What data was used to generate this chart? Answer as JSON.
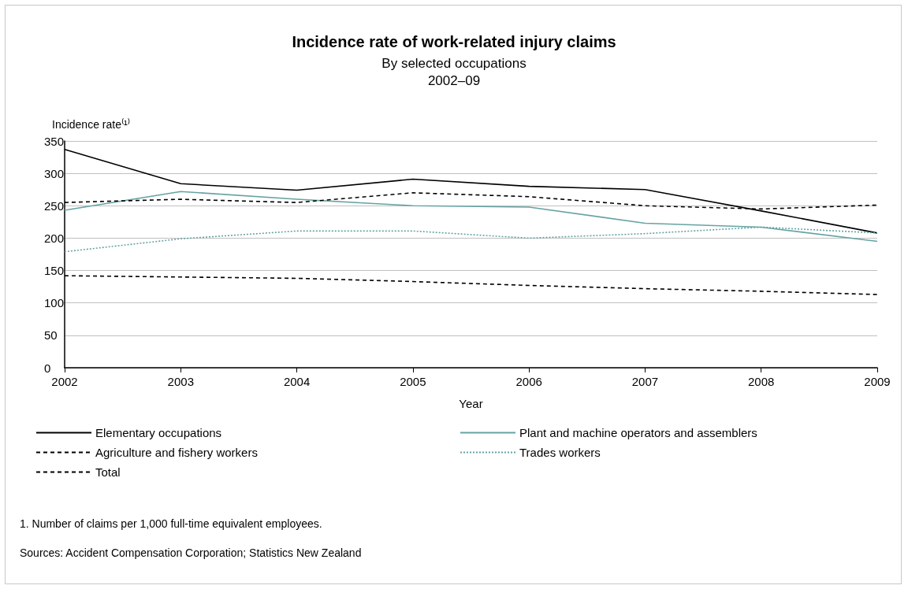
{
  "chart_data": {
    "type": "line",
    "title": "Incidence rate of work-related injury claims",
    "subtitle": "By selected occupations\n2002–09",
    "xlabel": "Year",
    "ylabel": "Incidence rate⁽¹⁾",
    "categories": [
      "2002",
      "2003",
      "2004",
      "2005",
      "2006",
      "2007",
      "2008",
      "2009"
    ],
    "series": [
      {
        "name": "Elementary occupations",
        "color": "#000000",
        "line_style": "solid",
        "values": [
          337,
          284,
          274,
          291,
          280,
          275,
          242,
          208
        ]
      },
      {
        "name": "Plant and machine operators and assemblers",
        "color": "#66a3a3",
        "line_style": "solid",
        "values": [
          243,
          272,
          260,
          250,
          248,
          223,
          217,
          195
        ]
      },
      {
        "name": "Agriculture and fishery workers",
        "color": "#000000",
        "line_style": "dashed",
        "values": [
          255,
          260,
          255,
          270,
          264,
          250,
          245,
          251
        ]
      },
      {
        "name": "Trades workers",
        "color": "#66a3a3",
        "line_style": "dotted",
        "values": [
          179,
          199,
          211,
          211,
          200,
          207,
          217,
          208
        ]
      },
      {
        "name": "Total",
        "color": "#000000",
        "line_style": "dashed",
        "values": [
          142,
          140,
          138,
          133,
          127,
          122,
          118,
          113
        ]
      }
    ],
    "ylim": [
      0,
      350
    ],
    "yticks": [
      0,
      50,
      100,
      150,
      200,
      250,
      300,
      350
    ],
    "grid": "y",
    "legend": "bottom",
    "marker": "none",
    "annotations": [
      "1. Number of claims per 1,000 full-time equivalent employees.",
      "Sources: Accident Compensation Corporation; Statistics New Zealand"
    ]
  }
}
